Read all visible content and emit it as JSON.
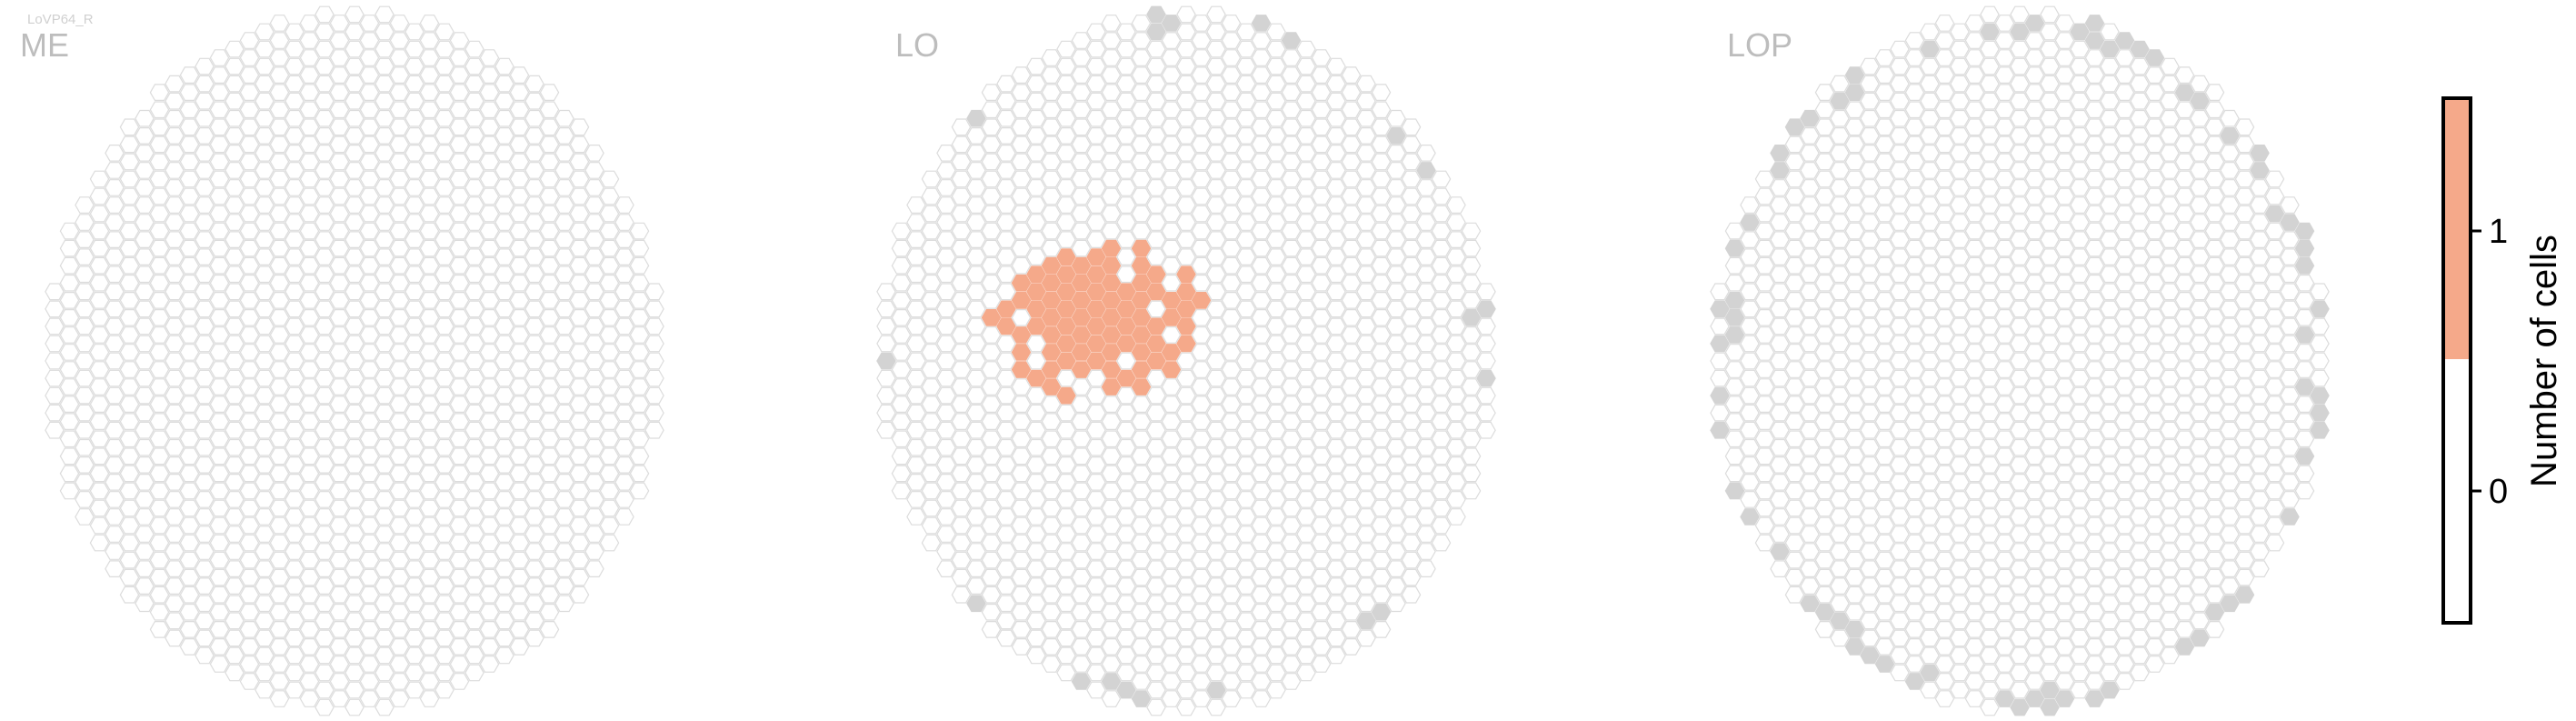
{
  "figure": {
    "cell_type_label": "LoVP64_R",
    "colors": {
      "empty_fill": "#ffffff",
      "empty_stroke": "#dcdcdc",
      "boundary_fill": "#d3d3d3",
      "cell_fill": "#f5a98a",
      "title_color": "#bdbdbd",
      "axis_color": "#000000"
    }
  },
  "chart_data": [
    {
      "type": "heatmap",
      "title": "ME",
      "grid": "hexagonal column lattice",
      "value_legend": {
        "0": "empty",
        "1": "one cell"
      },
      "hexagons_with_value_1": 0,
      "boundary_hexagons_marked_grey": 0
    },
    {
      "type": "heatmap",
      "title": "LO",
      "grid": "hexagonal column lattice",
      "value_legend": {
        "0": "empty",
        "1": "one cell"
      },
      "hexagons_with_value_1": 81,
      "value_1_region": "left-center of the lattice, extending right to about 3/4 width",
      "boundary_hexagons_marked_grey": 20
    },
    {
      "type": "heatmap",
      "title": "LOP",
      "grid": "hexagonal column lattice",
      "value_legend": {
        "0": "empty",
        "1": "one cell"
      },
      "hexagons_with_value_1": 0,
      "boundary_hexagons_marked_grey": 70
    }
  ],
  "colorbar": {
    "label": "Number of cells",
    "ticks": [
      "0",
      "1"
    ],
    "tick_values": [
      0,
      1
    ],
    "range": [
      -0.5,
      1.5
    ],
    "segments": [
      {
        "from": -0.5,
        "to": 0.5,
        "color": "#ffffff"
      },
      {
        "from": 0.5,
        "to": 1.5,
        "color": "#f5a98a"
      }
    ]
  }
}
